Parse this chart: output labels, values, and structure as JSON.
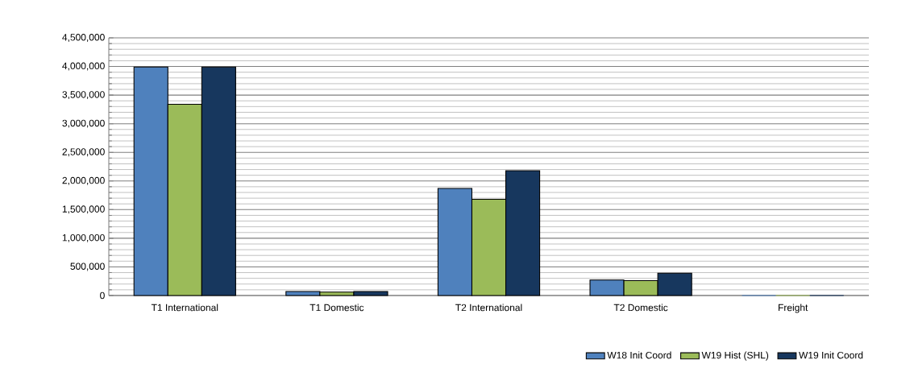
{
  "chart_data": {
    "type": "bar",
    "categories": [
      "T1 International",
      "T1 Domestic",
      "T2 International",
      "T2 Domestic",
      "Freight"
    ],
    "series": [
      {
        "name": "W18 Init Coord",
        "color": "#4f81bd",
        "values": [
          3990000,
          70000,
          1870000,
          270000,
          0
        ]
      },
      {
        "name": "W19 Hist (SHL)",
        "color": "#9bbb59",
        "values": [
          3340000,
          60000,
          1680000,
          260000,
          0
        ]
      },
      {
        "name": "W19 Init Coord",
        "color": "#17375e",
        "values": [
          3990000,
          70000,
          2180000,
          390000,
          0
        ]
      }
    ],
    "ylim": [
      0,
      4500000
    ],
    "yticks": [
      0,
      {
        "value": 500000,
        "label": "500,000"
      },
      {
        "value": 1000000,
        "label": "1,000,000"
      },
      {
        "value": 1500000,
        "label": "1,500,000"
      },
      {
        "value": 2000000,
        "label": "2,000,000"
      },
      {
        "value": 2500000,
        "label": "2,500,000"
      },
      {
        "value": 3000000,
        "label": "3,000,000"
      },
      {
        "value": 3500000,
        "label": "3,500,000"
      },
      {
        "value": 4000000,
        "label": "4,000,000"
      },
      {
        "value": 4500000,
        "label": "4,500,000"
      }
    ],
    "grid": "y",
    "legend": "bottom right"
  }
}
